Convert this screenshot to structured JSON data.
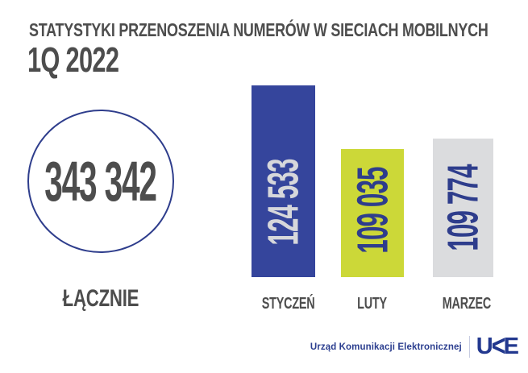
{
  "chart_data": {
    "type": "bar",
    "title": "STATYSTYKI PRZENOSZENIA NUMERÓW W SIECIACH MOBILNYCH",
    "subtitle": "1Q 2022",
    "orientation": "vertical",
    "categories": [
      "STYCZEŃ",
      "LUTY",
      "MARZEC"
    ],
    "values": [
      124533,
      109035,
      109774
    ],
    "value_labels": [
      "124 533",
      "109 035",
      "109 774"
    ],
    "value_label_rotation_deg": -90,
    "bar_colors": [
      "#35459c",
      "#ccd838",
      "#dbdcde"
    ],
    "value_text_colors": [
      "#d6d7db",
      "#2e3d8c",
      "#2e3d8c"
    ],
    "total": {
      "value": 343342,
      "label": "343 342",
      "caption": "ŁĄCZNIE",
      "circle_border_color": "#2e3d8c"
    },
    "text_color": "#4d4d4d",
    "background": "#ffffff",
    "grid": false,
    "legend": false
  },
  "footer": {
    "org": "Urząd Komunikacji Elektronicznej",
    "logo_name": "UKE",
    "logo_display_parts": {
      "u": "U",
      "k": "<",
      "e": "E"
    },
    "logo_color": "#22388f"
  }
}
